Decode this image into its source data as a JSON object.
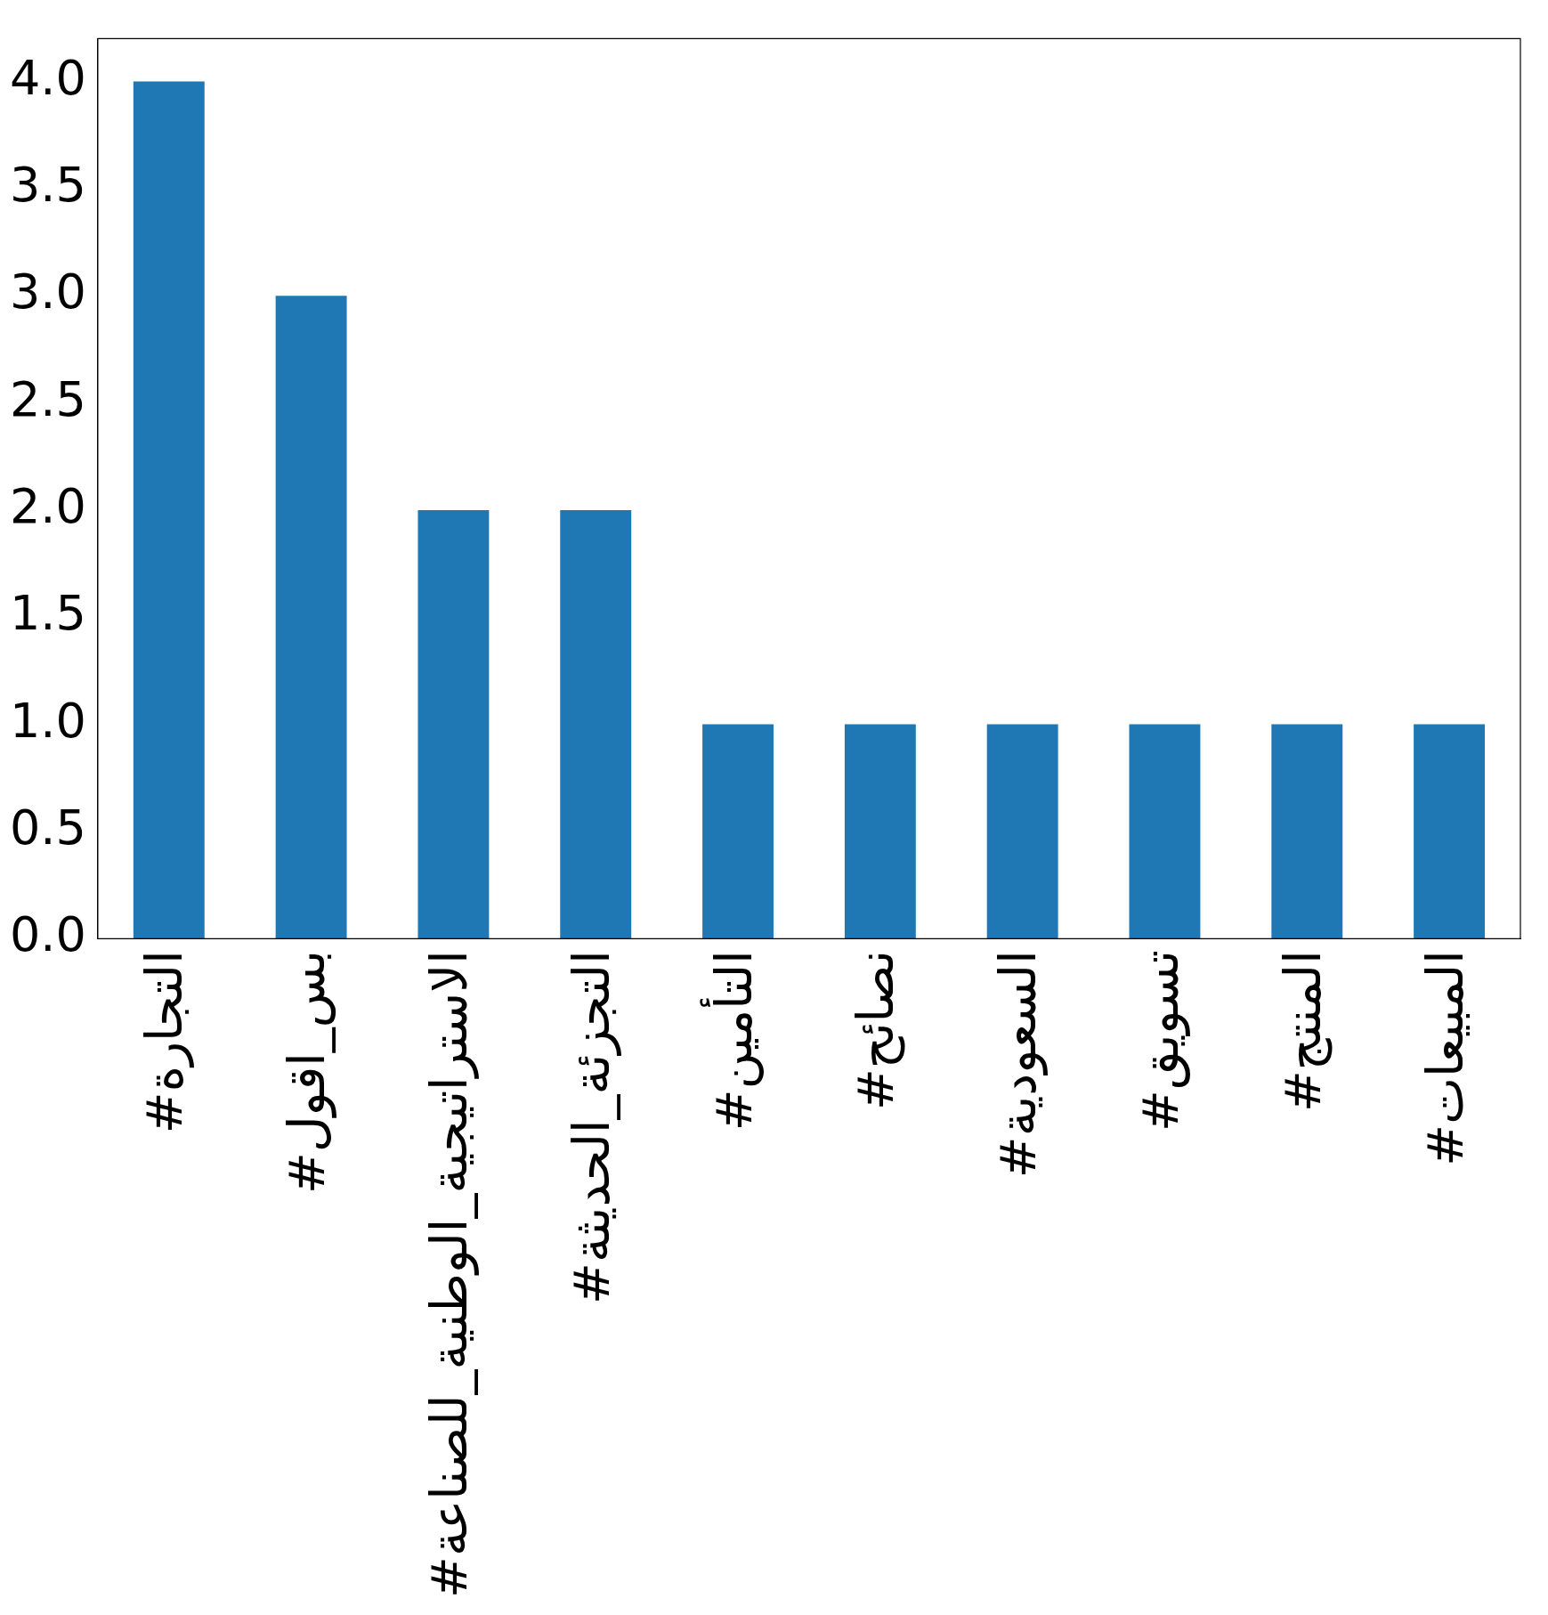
{
  "chart_data": {
    "type": "bar",
    "categories": [
      "#التجارة",
      "#بس_اقول",
      "#الاستراتيجية_الوطنية_للصناعة",
      "#التجزئة_الحديثة",
      "#التأمين",
      "#نصائح",
      "#السعودية",
      "#تسويق",
      "#المنتج",
      "#المبيعات"
    ],
    "values": [
      4,
      3,
      2,
      2,
      1,
      1,
      1,
      1,
      1,
      1
    ],
    "color": "#1f77b4",
    "ylim": [
      0,
      4.2
    ],
    "yticks": [
      {
        "value": 0,
        "label": "0.0"
      },
      {
        "value": 0.5,
        "label": "0.5"
      },
      {
        "value": 1,
        "label": "1.0"
      },
      {
        "value": 1.5,
        "label": "1.5"
      },
      {
        "value": 2,
        "label": "2.0"
      },
      {
        "value": 2.5,
        "label": "2.5"
      },
      {
        "value": 3,
        "label": "3.0"
      },
      {
        "value": 3.5,
        "label": "3.5"
      },
      {
        "value": 4,
        "label": "4.0"
      }
    ],
    "grid": false,
    "legend": false
  }
}
